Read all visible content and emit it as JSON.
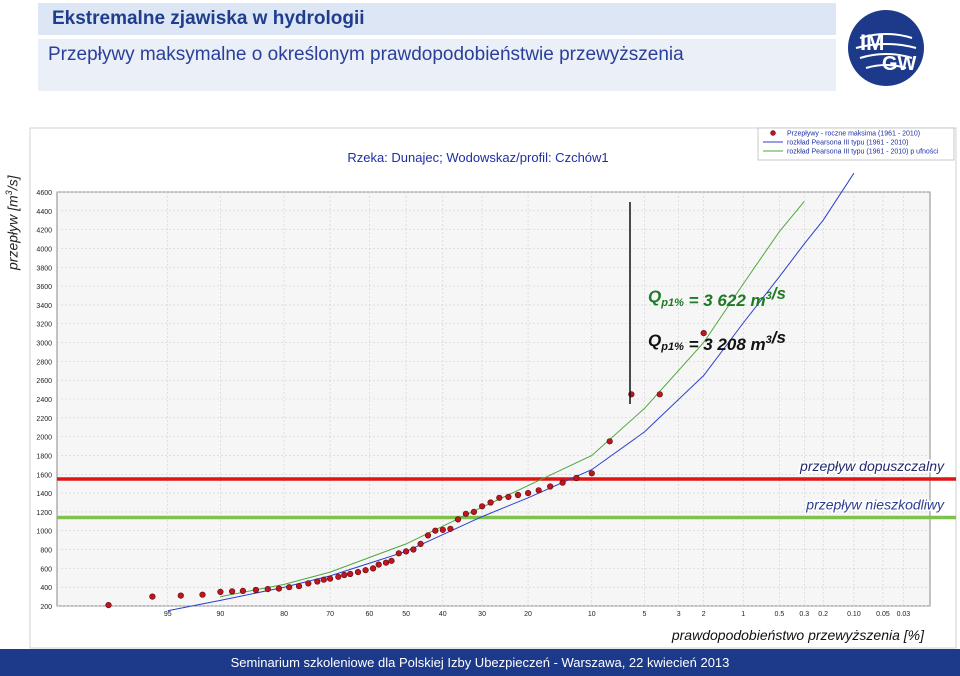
{
  "header": {
    "title": "Ekstremalne zjawiska w hydrologii",
    "subtitle": "Przepływy maksymalne o określonym prawdopodobieństwie przewyższenia"
  },
  "logo": {
    "text_top": "IM",
    "text_bottom": "GW"
  },
  "footer": {
    "text": "Seminarium szkoleniowe dla Polskiej Izby Ubezpieczeń - Warszawa, 22 kwiecień 2013"
  },
  "chart_data": {
    "type": "scatter",
    "title": "Rzeka: Dunajec;  Wodowskaz/profil: Czchów1",
    "xlabel": "prawdopodobieństwo przewyższenia [%]",
    "ylabel": "przepływ [m3/s]",
    "ylim": [
      200,
      4600
    ],
    "yticks": [
      200,
      400,
      600,
      800,
      1000,
      1200,
      1400,
      1600,
      1800,
      2000,
      2200,
      2400,
      2600,
      2800,
      3000,
      3200,
      3400,
      3600,
      3800,
      4000,
      4200,
      4400,
      4600
    ],
    "xticks": [
      "95",
      "90",
      "80",
      "70",
      "60",
      "50",
      "40",
      "30",
      "20",
      "10",
      "5",
      "3",
      "2",
      "1",
      "0.5",
      "0.3",
      "0.2",
      "0.10",
      "0.05",
      "0.03"
    ],
    "grid": true,
    "legend_position": "top-right",
    "legend": [
      "Przepływy - roczne maksima (1961 - 2010)",
      "rozkład Pearsona III typu (1961 - 2010)",
      "rozkład Pearsona III typu (1961 - 2010)  p ufności"
    ],
    "series": [
      {
        "name": "Przepływy - roczne maksima (1961 - 2010)",
        "type": "scatter",
        "color": "#c0141e",
        "points": [
          [
            98.0,
            210
          ],
          [
            96.0,
            300
          ],
          [
            94.0,
            310
          ],
          [
            92.0,
            320
          ],
          [
            90.0,
            350
          ],
          [
            88.5,
            355
          ],
          [
            87.0,
            360
          ],
          [
            85.0,
            370
          ],
          [
            83.0,
            380
          ],
          [
            81.0,
            385
          ],
          [
            79.0,
            400
          ],
          [
            77.0,
            410
          ],
          [
            75.0,
            440
          ],
          [
            73.0,
            460
          ],
          [
            71.5,
            480
          ],
          [
            70.0,
            490
          ],
          [
            68.0,
            510
          ],
          [
            66.5,
            530
          ],
          [
            65.0,
            540
          ],
          [
            63.0,
            560
          ],
          [
            61.0,
            580
          ],
          [
            59.0,
            600
          ],
          [
            57.5,
            640
          ],
          [
            55.5,
            660
          ],
          [
            54.0,
            680
          ],
          [
            52.0,
            760
          ],
          [
            50.0,
            780
          ],
          [
            48.0,
            800
          ],
          [
            46.0,
            860
          ],
          [
            44.0,
            950
          ],
          [
            42.0,
            1000
          ],
          [
            40.0,
            1010
          ],
          [
            38.0,
            1020
          ],
          [
            36.0,
            1120
          ],
          [
            34.0,
            1180
          ],
          [
            32.0,
            1200
          ],
          [
            30.0,
            1260
          ],
          [
            28.0,
            1300
          ],
          [
            26.0,
            1350
          ],
          [
            24.0,
            1360
          ],
          [
            22.0,
            1380
          ],
          [
            20.0,
            1400
          ],
          [
            18.0,
            1430
          ],
          [
            16.0,
            1470
          ],
          [
            14.0,
            1510
          ],
          [
            12.0,
            1560
          ],
          [
            10.0,
            1610
          ],
          [
            8.0,
            1950
          ],
          [
            6.0,
            2450
          ],
          [
            4.0,
            2450
          ],
          [
            2.0,
            3100
          ]
        ]
      },
      {
        "name": "rozkład Pearsona III typu (1961 - 2010)",
        "type": "line",
        "color": "#2b3fd0",
        "points": [
          [
            95,
            150
          ],
          [
            90,
            260
          ],
          [
            80,
            400
          ],
          [
            70,
            520
          ],
          [
            50,
            780
          ],
          [
            30,
            1150
          ],
          [
            20,
            1350
          ],
          [
            10,
            1650
          ],
          [
            5,
            2050
          ],
          [
            2,
            2650
          ],
          [
            1,
            3208
          ],
          [
            0.5,
            3700
          ],
          [
            0.3,
            4050
          ],
          [
            0.2,
            4300
          ],
          [
            0.1,
            4800
          ]
        ]
      },
      {
        "name": "rozkład Pearsona III typu (1961 - 2010)  p ufności",
        "type": "line",
        "color": "#4fa73c",
        "points": [
          [
            90,
            300
          ],
          [
            80,
            430
          ],
          [
            70,
            560
          ],
          [
            50,
            860
          ],
          [
            30,
            1250
          ],
          [
            20,
            1480
          ],
          [
            10,
            1800
          ],
          [
            5,
            2300
          ],
          [
            2,
            3000
          ],
          [
            1,
            3622
          ],
          [
            0.5,
            4180
          ],
          [
            0.3,
            4500
          ]
        ]
      }
    ],
    "reference_lines": [
      {
        "label": "przepływ dopuszczalny",
        "value": 1550,
        "color": "#e01414"
      },
      {
        "label": "przepływ nieszkodliwy",
        "value": 1140,
        "color": "#7ec24c"
      }
    ],
    "annotations": [
      {
        "prefix": "Q",
        "sub": "p1%",
        "text": " = 3 622 m",
        "sup": "3",
        "suffix": "/s",
        "color": "#1f7a26"
      },
      {
        "prefix": "Q",
        "sub": "p1%",
        "text": " = 3 208 m",
        "sup": "3",
        "suffix": "/s",
        "color": "#111111"
      }
    ]
  }
}
